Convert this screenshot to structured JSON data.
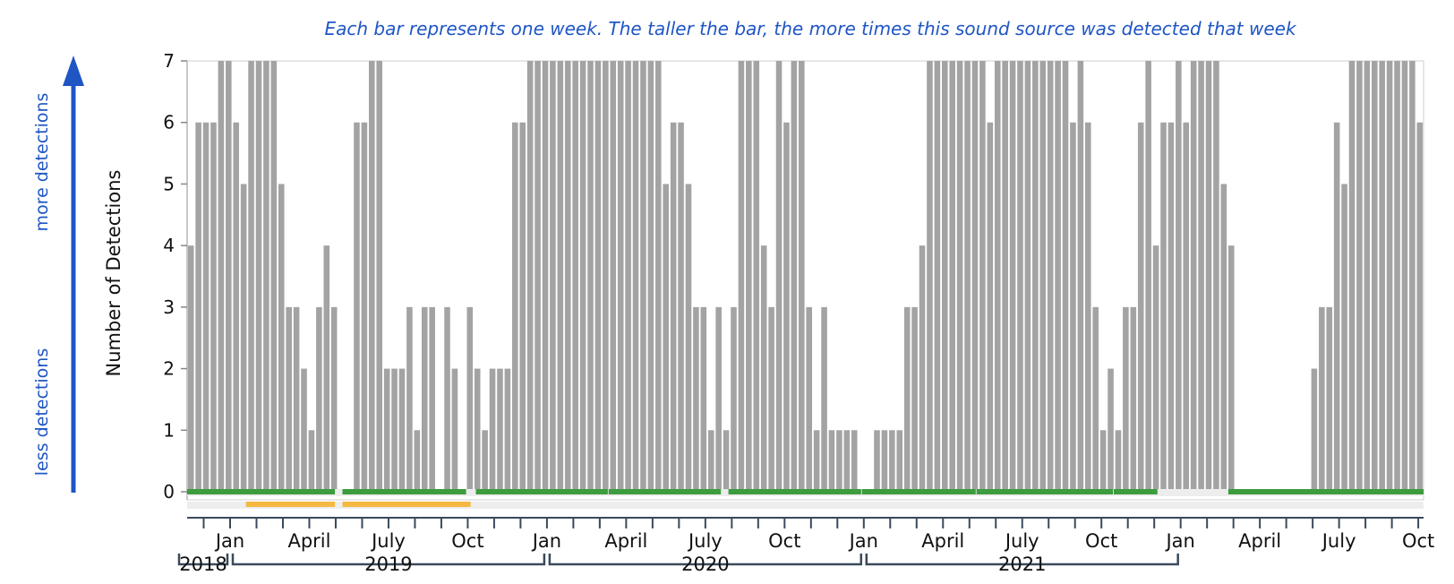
{
  "caption": "Each bar represents one week. The taller the bar, the more times this sound source was detected that week",
  "side_labels": {
    "more": "more detections",
    "less": "less detections"
  },
  "colors": {
    "bar": "#a3a3a3",
    "axis_annotation": "#1f56c4",
    "deployment_bar": "#3c9c3e",
    "secondary_bar": "#f5b942",
    "track_background": "#e6e6e6",
    "bracket": "#3a4a5c"
  },
  "chart_data": {
    "type": "bar",
    "ylabel": "Number of Detections",
    "ylim": [
      0,
      7
    ],
    "yticks": [
      "0",
      "1",
      "2",
      "3",
      "4",
      "5",
      "6",
      "7"
    ],
    "grid": false,
    "month_ticks": [
      "Jan",
      "April",
      "July",
      "Oct",
      "Jan",
      "April",
      "July",
      "Oct",
      "Jan",
      "April",
      "July",
      "Oct",
      "Jan",
      "April",
      "July",
      "Oct"
    ],
    "years": [
      "2018",
      "2019",
      "2020",
      "2021"
    ],
    "weekly_detections": [
      4,
      6,
      6,
      6,
      7,
      7,
      6,
      5,
      7,
      7,
      7,
      7,
      5,
      3,
      3,
      2,
      1,
      3,
      4,
      3,
      0,
      0,
      6,
      6,
      7,
      7,
      2,
      2,
      2,
      3,
      1,
      3,
      3,
      0,
      3,
      2,
      0,
      3,
      2,
      1,
      2,
      2,
      2,
      6,
      6,
      7,
      7,
      7,
      7,
      7,
      7,
      7,
      7,
      7,
      7,
      7,
      7,
      7,
      7,
      7,
      7,
      7,
      7,
      5,
      6,
      6,
      5,
      3,
      3,
      1,
      3,
      1,
      3,
      7,
      7,
      7,
      4,
      3,
      7,
      6,
      7,
      7,
      3,
      1,
      3,
      1,
      1,
      1,
      1,
      0,
      0,
      1,
      1,
      1,
      1,
      3,
      3,
      4,
      7,
      7,
      7,
      7,
      7,
      7,
      7,
      7,
      6,
      7,
      7,
      7,
      7,
      7,
      7,
      7,
      7,
      7,
      7,
      6,
      7,
      6,
      3,
      1,
      2,
      1,
      3,
      3,
      6,
      7,
      4,
      6,
      6,
      7,
      6,
      7,
      7,
      7,
      7,
      5,
      4,
      0,
      0,
      0,
      0,
      0,
      0,
      0,
      0,
      0,
      0,
      2,
      3,
      3,
      6,
      5,
      7,
      7,
      7,
      7,
      7,
      7,
      7,
      7,
      7,
      6
    ]
  }
}
